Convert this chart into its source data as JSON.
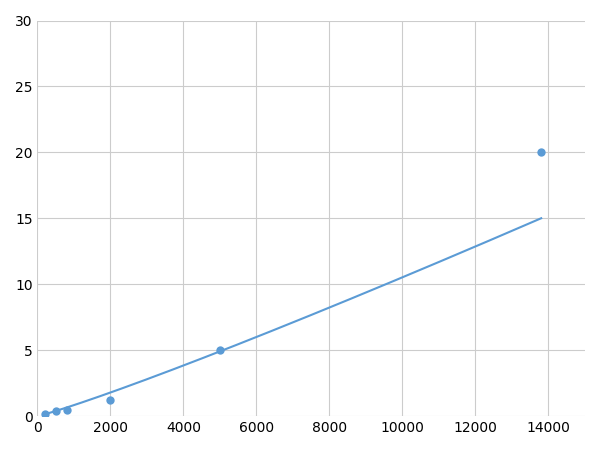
{
  "x_data": [
    200,
    500,
    800,
    2000,
    5000,
    13800
  ],
  "y_data": [
    0.2,
    0.4,
    0.5,
    1.2,
    5.0,
    20.0
  ],
  "line_color": "#5B9BD5",
  "marker_color": "#5B9BD5",
  "marker_size": 6,
  "linewidth": 1.5,
  "xlim": [
    0,
    15000
  ],
  "ylim": [
    0,
    30
  ],
  "xticks": [
    0,
    2000,
    4000,
    6000,
    8000,
    10000,
    12000,
    14000
  ],
  "yticks": [
    0,
    5,
    10,
    15,
    20,
    25,
    30
  ],
  "grid_color": "#CCCCCC",
  "background_color": "#FFFFFF",
  "figsize": [
    6.0,
    4.5
  ],
  "dpi": 100
}
